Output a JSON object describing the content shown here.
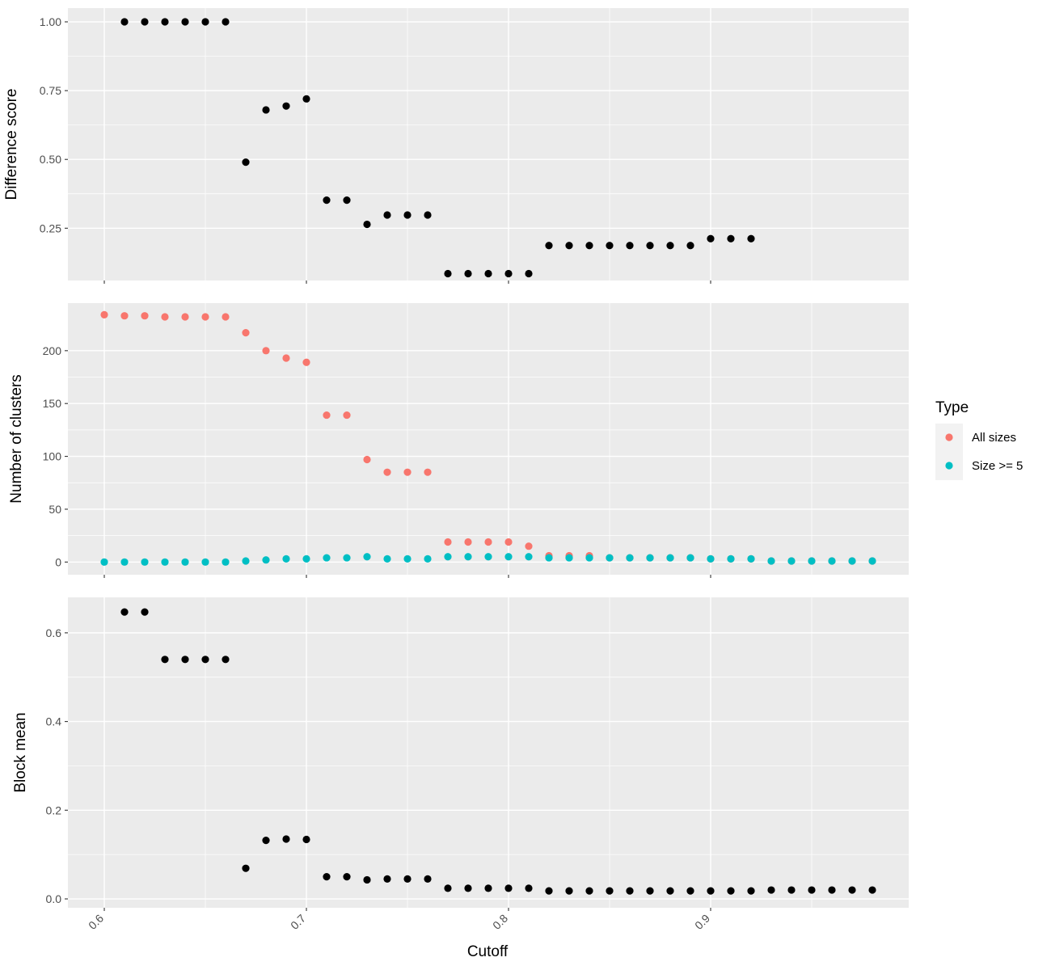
{
  "chart_data": [
    {
      "type": "scatter",
      "ylabel": "Difference score",
      "xlim": [
        0.582,
        0.998
      ],
      "ylim": [
        0.06,
        1.05
      ],
      "y_ticks": [
        0.25,
        0.5,
        0.75,
        1.0
      ],
      "y_tick_labels": [
        "0.25",
        "0.50",
        "0.75",
        "1.00"
      ],
      "color": "#000000",
      "points": [
        [
          0.61,
          1.0
        ],
        [
          0.62,
          1.0
        ],
        [
          0.63,
          1.0
        ],
        [
          0.64,
          1.0
        ],
        [
          0.65,
          1.0
        ],
        [
          0.66,
          1.0
        ],
        [
          0.67,
          0.49
        ],
        [
          0.68,
          0.68
        ],
        [
          0.69,
          0.694
        ],
        [
          0.7,
          0.72
        ],
        [
          0.71,
          0.352
        ],
        [
          0.72,
          0.352
        ],
        [
          0.73,
          0.264
        ],
        [
          0.74,
          0.298
        ],
        [
          0.75,
          0.298
        ],
        [
          0.76,
          0.298
        ],
        [
          0.77,
          0.085
        ],
        [
          0.78,
          0.085
        ],
        [
          0.79,
          0.085
        ],
        [
          0.8,
          0.085
        ],
        [
          0.81,
          0.085
        ],
        [
          0.82,
          0.187
        ],
        [
          0.83,
          0.187
        ],
        [
          0.84,
          0.187
        ],
        [
          0.85,
          0.187
        ],
        [
          0.86,
          0.187
        ],
        [
          0.87,
          0.187
        ],
        [
          0.88,
          0.187
        ],
        [
          0.89,
          0.187
        ],
        [
          0.9,
          0.212
        ],
        [
          0.91,
          0.212
        ],
        [
          0.92,
          0.212
        ]
      ]
    },
    {
      "type": "scatter",
      "ylabel": "Number of clusters",
      "xlim": [
        0.582,
        0.998
      ],
      "ylim": [
        -12,
        245
      ],
      "y_ticks": [
        0,
        50,
        100,
        150,
        200
      ],
      "y_tick_labels": [
        "0",
        "50",
        "100",
        "150",
        "200"
      ],
      "series": [
        {
          "name": "All sizes",
          "color": "#F8766D",
          "points": [
            [
              0.6,
              234
            ],
            [
              0.61,
              233
            ],
            [
              0.62,
              233
            ],
            [
              0.63,
              232
            ],
            [
              0.64,
              232
            ],
            [
              0.65,
              232
            ],
            [
              0.66,
              232
            ],
            [
              0.67,
              217
            ],
            [
              0.68,
              200
            ],
            [
              0.69,
              193
            ],
            [
              0.7,
              189
            ],
            [
              0.71,
              139
            ],
            [
              0.72,
              139
            ],
            [
              0.73,
              97
            ],
            [
              0.74,
              85
            ],
            [
              0.75,
              85
            ],
            [
              0.76,
              85
            ],
            [
              0.77,
              19
            ],
            [
              0.78,
              19
            ],
            [
              0.79,
              19
            ],
            [
              0.8,
              19
            ],
            [
              0.81,
              15
            ],
            [
              0.82,
              6
            ],
            [
              0.83,
              6
            ],
            [
              0.84,
              6
            ],
            [
              0.85,
              4
            ],
            [
              0.86,
              4
            ],
            [
              0.87,
              4
            ],
            [
              0.88,
              4
            ],
            [
              0.89,
              4
            ],
            [
              0.9,
              3
            ],
            [
              0.91,
              3
            ],
            [
              0.92,
              3
            ],
            [
              0.93,
              1
            ],
            [
              0.94,
              1
            ],
            [
              0.95,
              1
            ],
            [
              0.96,
              1
            ],
            [
              0.97,
              1
            ],
            [
              0.98,
              1
            ]
          ]
        },
        {
          "name": "Size >= 5",
          "color": "#00BFC4",
          "points": [
            [
              0.6,
              0
            ],
            [
              0.61,
              0
            ],
            [
              0.62,
              0
            ],
            [
              0.63,
              0
            ],
            [
              0.64,
              0
            ],
            [
              0.65,
              0
            ],
            [
              0.66,
              0
            ],
            [
              0.67,
              1
            ],
            [
              0.68,
              2
            ],
            [
              0.69,
              3
            ],
            [
              0.7,
              3
            ],
            [
              0.71,
              4
            ],
            [
              0.72,
              4
            ],
            [
              0.73,
              5
            ],
            [
              0.74,
              3
            ],
            [
              0.75,
              3
            ],
            [
              0.76,
              3
            ],
            [
              0.77,
              5
            ],
            [
              0.78,
              5
            ],
            [
              0.79,
              5
            ],
            [
              0.8,
              5
            ],
            [
              0.81,
              5
            ],
            [
              0.82,
              4
            ],
            [
              0.83,
              4
            ],
            [
              0.84,
              4
            ],
            [
              0.85,
              4
            ],
            [
              0.86,
              4
            ],
            [
              0.87,
              4
            ],
            [
              0.88,
              4
            ],
            [
              0.89,
              4
            ],
            [
              0.9,
              3
            ],
            [
              0.91,
              3
            ],
            [
              0.92,
              3
            ],
            [
              0.93,
              1
            ],
            [
              0.94,
              1
            ],
            [
              0.95,
              1
            ],
            [
              0.96,
              1
            ],
            [
              0.97,
              1
            ],
            [
              0.98,
              1
            ]
          ]
        }
      ]
    },
    {
      "type": "scatter",
      "ylabel": "Block mean",
      "xlim": [
        0.582,
        0.998
      ],
      "ylim": [
        -0.02,
        0.68
      ],
      "y_ticks": [
        0.0,
        0.2,
        0.4,
        0.6
      ],
      "y_tick_labels": [
        "0.0",
        "0.2",
        "0.4",
        "0.6"
      ],
      "color": "#000000",
      "points": [
        [
          0.61,
          0.647
        ],
        [
          0.62,
          0.647
        ],
        [
          0.63,
          0.54
        ],
        [
          0.64,
          0.54
        ],
        [
          0.65,
          0.54
        ],
        [
          0.66,
          0.54
        ],
        [
          0.67,
          0.069
        ],
        [
          0.68,
          0.132
        ],
        [
          0.69,
          0.135
        ],
        [
          0.7,
          0.134
        ],
        [
          0.71,
          0.05
        ],
        [
          0.72,
          0.05
        ],
        [
          0.73,
          0.043
        ],
        [
          0.74,
          0.045
        ],
        [
          0.75,
          0.045
        ],
        [
          0.76,
          0.045
        ],
        [
          0.77,
          0.024
        ],
        [
          0.78,
          0.024
        ],
        [
          0.79,
          0.024
        ],
        [
          0.8,
          0.024
        ],
        [
          0.81,
          0.024
        ],
        [
          0.82,
          0.018
        ],
        [
          0.83,
          0.018
        ],
        [
          0.84,
          0.018
        ],
        [
          0.85,
          0.018
        ],
        [
          0.86,
          0.018
        ],
        [
          0.87,
          0.018
        ],
        [
          0.88,
          0.018
        ],
        [
          0.89,
          0.018
        ],
        [
          0.9,
          0.018
        ],
        [
          0.91,
          0.018
        ],
        [
          0.92,
          0.018
        ],
        [
          0.93,
          0.02
        ],
        [
          0.94,
          0.02
        ],
        [
          0.95,
          0.02
        ],
        [
          0.96,
          0.02
        ],
        [
          0.97,
          0.02
        ],
        [
          0.98,
          0.02
        ]
      ]
    }
  ],
  "x_axis": {
    "title": "Cutoff",
    "ticks": [
      0.6,
      0.7,
      0.8,
      0.9
    ],
    "tick_labels": [
      "0.6",
      "0.7",
      "0.8",
      "0.9"
    ]
  },
  "legend": {
    "title": "Type",
    "placement": "right",
    "items": [
      {
        "label": "All sizes",
        "color": "#F8766D"
      },
      {
        "label": "Size >= 5",
        "color": "#00BFC4"
      }
    ]
  }
}
